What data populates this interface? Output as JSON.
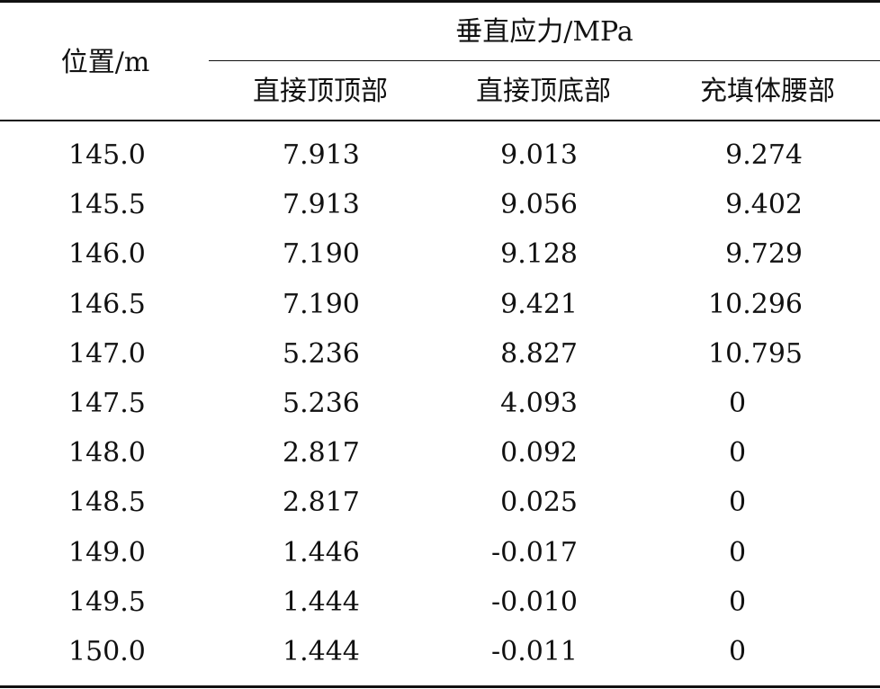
{
  "table": {
    "row_header": "位置/m",
    "group_header": "垂直应力/MPa",
    "columns": [
      "直接顶顶部",
      "直接顶底部",
      "充填体腰部"
    ],
    "rows": [
      [
        "145.0",
        "7.913",
        "9.013",
        "9.274"
      ],
      [
        "145.5",
        "7.913",
        "9.056",
        "9.402"
      ],
      [
        "146.0",
        "7.190",
        "9.128",
        "9.729"
      ],
      [
        "146.5",
        "7.190",
        "9.421",
        "10.296"
      ],
      [
        "147.0",
        "5.236",
        "8.827",
        "10.795"
      ],
      [
        "147.5",
        "5.236",
        "4.093",
        "0"
      ],
      [
        "148.0",
        "2.817",
        "0.092",
        "0"
      ],
      [
        "148.5",
        "2.817",
        "0.025",
        "0"
      ],
      [
        "149.0",
        "1.446",
        "-0.017",
        "0"
      ],
      [
        "149.5",
        "1.444",
        "-0.010",
        "0"
      ],
      [
        "150.0",
        "1.444",
        "-0.011",
        "0"
      ]
    ]
  }
}
